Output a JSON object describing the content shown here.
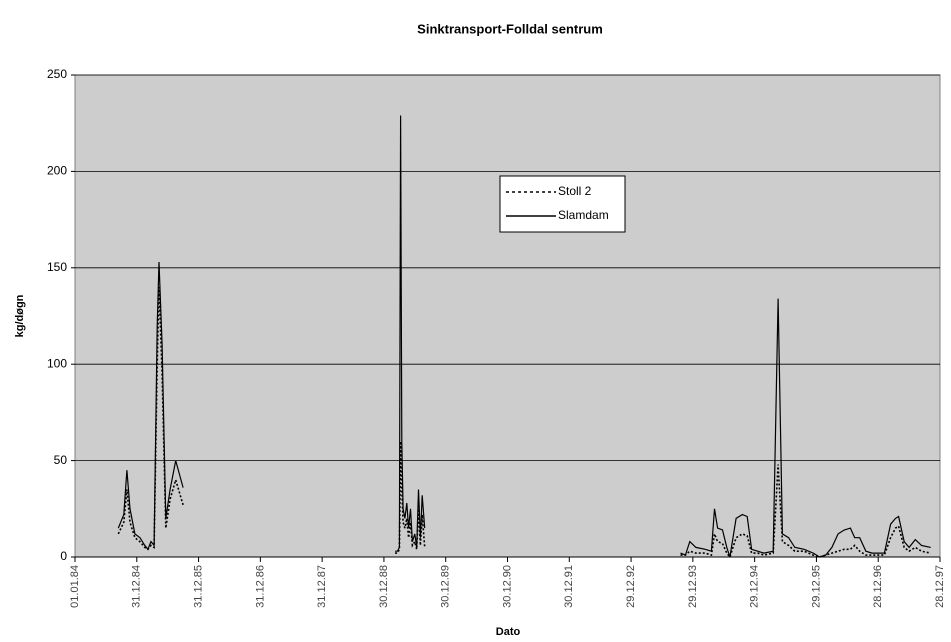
{
  "chart_data": {
    "type": "line",
    "title": "Sinktransport-Folldal sentrum",
    "x_label": "Dato",
    "y_label": "kg/døgn",
    "x": [
      1984.7,
      1984.79,
      1984.84,
      1984.89,
      1984.97,
      1985.05,
      1985.13,
      1985.18,
      1985.23,
      1985.28,
      1985.33,
      1985.36,
      1985.41,
      1985.47,
      1985.54,
      1985.63,
      1985.75,
      1987.0,
      1989.18,
      1989.22,
      1989.25,
      1989.27,
      1989.29,
      1989.31,
      1989.34,
      1989.37,
      1989.4,
      1989.43,
      1989.46,
      1989.5,
      1989.53,
      1989.56,
      1989.59,
      1989.62,
      1989.66,
      1991.5,
      1993.8,
      1993.88,
      1993.95,
      1994.05,
      1994.2,
      1994.3,
      1994.35,
      1994.4,
      1994.48,
      1994.55,
      1994.6,
      1994.7,
      1994.8,
      1994.88,
      1994.95,
      1995.05,
      1995.15,
      1995.3,
      1995.38,
      1995.45,
      1995.55,
      1995.65,
      1995.8,
      1995.95,
      1996.05,
      1996.15,
      1996.25,
      1996.35,
      1996.45,
      1996.55,
      1996.62,
      1996.7,
      1996.8,
      1996.9,
      1997.0,
      1997.1,
      1997.2,
      1997.28,
      1997.33,
      1997.42,
      1997.5,
      1997.6,
      1997.7,
      1997.85
    ],
    "series": [
      {
        "name": "Stoll 2",
        "color": "#000000",
        "dash": true,
        "values": [
          12,
          18,
          35,
          18,
          10,
          8,
          5,
          4,
          6,
          5,
          100,
          140,
          95,
          15,
          30,
          40,
          27,
          null,
          2,
          2,
          4,
          60,
          35,
          18,
          15,
          20,
          10,
          18,
          6,
          8,
          4,
          25,
          6,
          22,
          5,
          null,
          1,
          1,
          3,
          2,
          2,
          1,
          12,
          8,
          7,
          2,
          0,
          10,
          12,
          11,
          2,
          2,
          1,
          2,
          48,
          8,
          6,
          3,
          3,
          1,
          0,
          1,
          2,
          3,
          4,
          4,
          6,
          3,
          1,
          1,
          1,
          1,
          10,
          15,
          16,
          5,
          3,
          5,
          3,
          2
        ]
      },
      {
        "name": "Slamdam",
        "color": "#000000",
        "dash": false,
        "values": [
          15,
          22,
          45,
          25,
          12,
          10,
          6,
          4,
          8,
          6,
          120,
          153,
          110,
          20,
          35,
          50,
          36,
          null,
          3,
          3,
          5,
          229,
          60,
          25,
          20,
          28,
          15,
          25,
          8,
          12,
          5,
          35,
          10,
          32,
          15,
          null,
          2,
          1,
          8,
          5,
          4,
          3,
          25,
          15,
          14,
          5,
          0,
          20,
          22,
          21,
          4,
          3,
          2,
          3,
          134,
          12,
          10,
          5,
          4,
          2,
          0,
          1,
          5,
          12,
          14,
          15,
          10,
          10,
          3,
          2,
          2,
          2,
          17,
          20,
          21,
          8,
          5,
          9,
          6,
          5
        ]
      }
    ],
    "xlim": [
      1984,
      1998
    ],
    "xticks": [
      {
        "value": 1984,
        "label": "01.01.84"
      },
      {
        "value": 1985,
        "label": "31.12.84"
      },
      {
        "value": 1986,
        "label": "31.12.85"
      },
      {
        "value": 1987,
        "label": "31.12.86"
      },
      {
        "value": 1988,
        "label": "31.12.87"
      },
      {
        "value": 1989,
        "label": "30.12.88"
      },
      {
        "value": 1990,
        "label": "30.12.89"
      },
      {
        "value": 1991,
        "label": "30.12.90"
      },
      {
        "value": 1992,
        "label": "30.12.91"
      },
      {
        "value": 1993,
        "label": "29.12.92"
      },
      {
        "value": 1994,
        "label": "29.12.93"
      },
      {
        "value": 1995,
        "label": "29.12.94"
      },
      {
        "value": 1996,
        "label": "29.12.95"
      },
      {
        "value": 1997,
        "label": "28.12.96"
      },
      {
        "value": 1998,
        "label": "28.12.97"
      }
    ],
    "ylim": [
      0,
      250
    ],
    "yticks": [
      0,
      50,
      100,
      150,
      200,
      250
    ],
    "grid": true
  }
}
